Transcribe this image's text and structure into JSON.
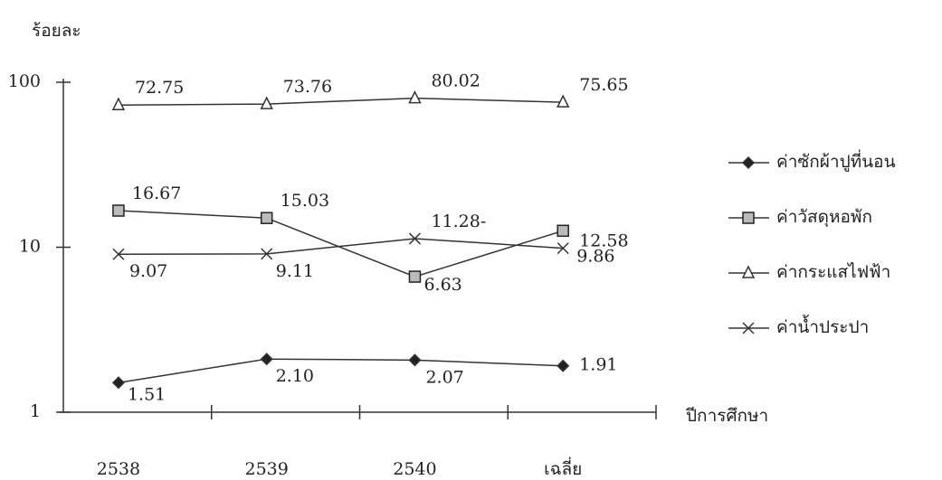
{
  "chart_data": {
    "type": "line",
    "yscale": "log",
    "y_label": "ร้อยละ",
    "x_label": "ปีการศึกษา",
    "categories": [
      "2538",
      "2539",
      "2540",
      "เฉลี่ย"
    ],
    "ylim": [
      1,
      100
    ],
    "yticks": [
      1,
      10,
      100
    ],
    "series": [
      {
        "name": "ค่าซักผ้าปูที่นอน",
        "color": "#222222",
        "marker": "diamond",
        "values": [
          1.51,
          2.1,
          2.07,
          1.91
        ],
        "value_labels": [
          "1.51",
          "2.10",
          "2.07",
          "1.91"
        ]
      },
      {
        "name": "ค่าวัสดุหอพัก",
        "color": "#222222",
        "marker": "square",
        "values": [
          16.67,
          15.03,
          6.63,
          12.58
        ],
        "value_labels": [
          "16.67",
          "15.03",
          "6.63",
          "12.58"
        ]
      },
      {
        "name": "ค่ากระแสไฟฟ้า",
        "color": "#222222",
        "marker": "triangle",
        "values": [
          72.75,
          73.76,
          80.02,
          75.65
        ],
        "value_labels": [
          "72.75",
          "73.76",
          "80.02",
          "75.65"
        ]
      },
      {
        "name": "ค่าน้ำประปา",
        "color": "#222222",
        "marker": "x",
        "values": [
          9.07,
          9.11,
          11.28,
          9.86
        ],
        "value_labels": [
          "9.07",
          "9.11",
          "11.28-",
          "9.86"
        ]
      }
    ]
  }
}
